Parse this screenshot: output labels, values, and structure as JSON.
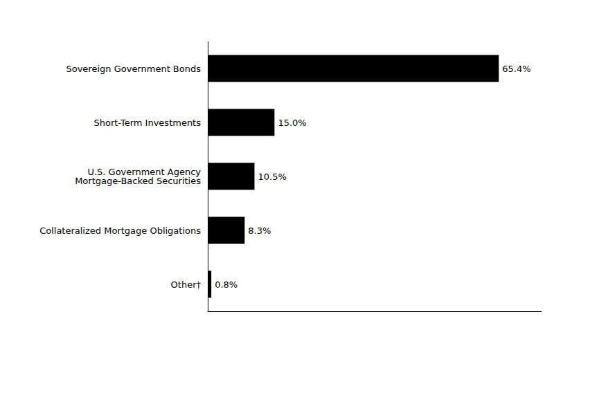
{
  "chart_data": {
    "type": "bar",
    "orientation": "horizontal",
    "categories": [
      "Other†",
      "Collateralized Mortgage Obligations",
      "U.S. Government Agency\nMortgage-Backed Securities",
      "Short-Term Investments",
      "Sovereign Government Bonds"
    ],
    "values": [
      0.8,
      8.3,
      10.5,
      15.0,
      65.4
    ],
    "value_labels": [
      "0.8%",
      "8.3%",
      "10.5%",
      "15.0%",
      "65.4%"
    ],
    "data_labels": true,
    "color": "#000000",
    "xlim": [
      0,
      75
    ],
    "tick_labels": "y",
    "grid": false
  }
}
